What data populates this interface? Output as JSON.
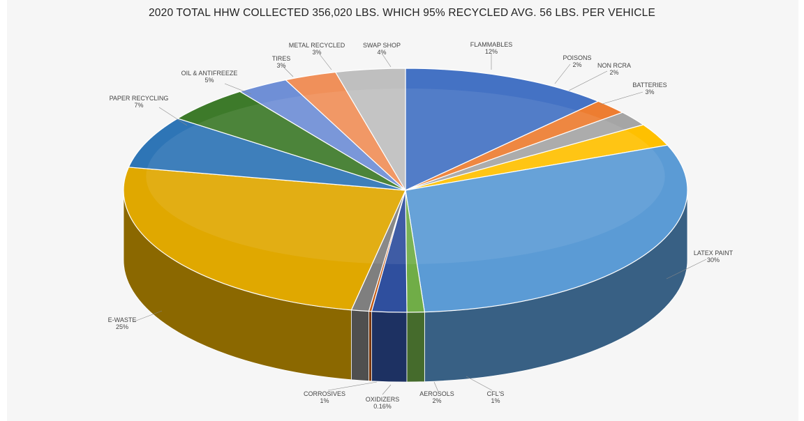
{
  "chart_data": {
    "type": "pie",
    "title": "2020 TOTAL HHW COLLECTED 356,020 LBS. WHICH 95% RECYCLED AVG. 56 LBS. PER VEHICLE",
    "slices": [
      {
        "label": "FLAMMABLES",
        "value_label": "12%",
        "value": 12,
        "color": "#4472c4"
      },
      {
        "label": "POISONS",
        "value_label": "2%",
        "value": 2,
        "color": "#ed7d31"
      },
      {
        "label": "NON RCRA",
        "value_label": "2%",
        "value": 2,
        "color": "#a5a5a5"
      },
      {
        "label": "BATTERIES",
        "value_label": "3%",
        "value": 3,
        "color": "#ffc000"
      },
      {
        "label": "LATEX PAINT",
        "value_label": "30%",
        "value": 30,
        "color": "#5b9bd5"
      },
      {
        "label": "CFL'S",
        "value_label": "1%",
        "value": 1,
        "color": "#70ad47"
      },
      {
        "label": "AEROSOLS",
        "value_label": "2%",
        "value": 2,
        "color": "#2f4f9e"
      },
      {
        "label": "OXIDIZERS",
        "value_label": "0.16%",
        "value": 0.16,
        "color": "#c55a11"
      },
      {
        "label": "CORROSIVES",
        "value_label": "1%",
        "value": 1,
        "color": "#7f7f7f"
      },
      {
        "label": "E-WASTE",
        "value_label": "25%",
        "value": 25,
        "color": "#e0a800"
      },
      {
        "label": "PAPER RECYCLING",
        "value_label": "7%",
        "value": 7,
        "color": "#2e75b6"
      },
      {
        "label": "OIL & ANTIFREEZE",
        "value_label": "5%",
        "value": 5,
        "color": "#3d7a2a"
      },
      {
        "label": "TIRES",
        "value_label": "3%",
        "value": 3,
        "color": "#6f8fd6"
      },
      {
        "label": "METAL RECYCLED",
        "value_label": "3%",
        "value": 3,
        "color": "#f0905a"
      },
      {
        "label": "SWAP SHOP",
        "value_label": "4%",
        "value": 4,
        "color": "#bfbfbf"
      }
    ],
    "legend": "none"
  }
}
